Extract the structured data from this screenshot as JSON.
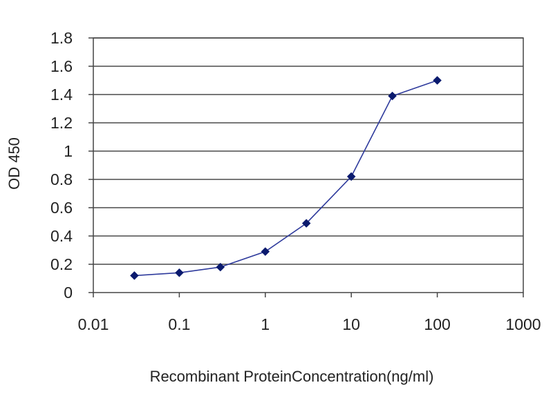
{
  "chart_data": {
    "type": "scatter",
    "title": "",
    "xlabel": "Recombinant ProteinConcentration(ng/ml)",
    "ylabel": "OD 450",
    "x_scale": "log",
    "xlim": [
      0.01,
      1000
    ],
    "ylim": [
      0,
      1.8
    ],
    "x_ticks": [
      0.01,
      0.1,
      1,
      10,
      100,
      1000
    ],
    "x_tick_labels": [
      "0.01",
      "0.1",
      "1",
      "10",
      "100",
      "1000"
    ],
    "y_ticks": [
      0,
      0.2,
      0.4,
      0.6,
      0.8,
      1,
      1.2,
      1.4,
      1.6,
      1.8
    ],
    "y_tick_labels": [
      "0",
      "0.2",
      "0.4",
      "0.6",
      "0.8",
      "1",
      "1.2",
      "1.4",
      "1.6",
      "1.8"
    ],
    "grid": "horizontal",
    "legend": "none",
    "series": [
      {
        "x": [
          0.03,
          0.1,
          0.3,
          1,
          3,
          10,
          30,
          100
        ],
        "y": [
          0.12,
          0.14,
          0.18,
          0.29,
          0.49,
          0.82,
          1.39,
          1.5
        ],
        "color": "#2e3a9c",
        "marker": "diamond",
        "marker_color": "#0a1a6e",
        "connected": true
      }
    ]
  }
}
